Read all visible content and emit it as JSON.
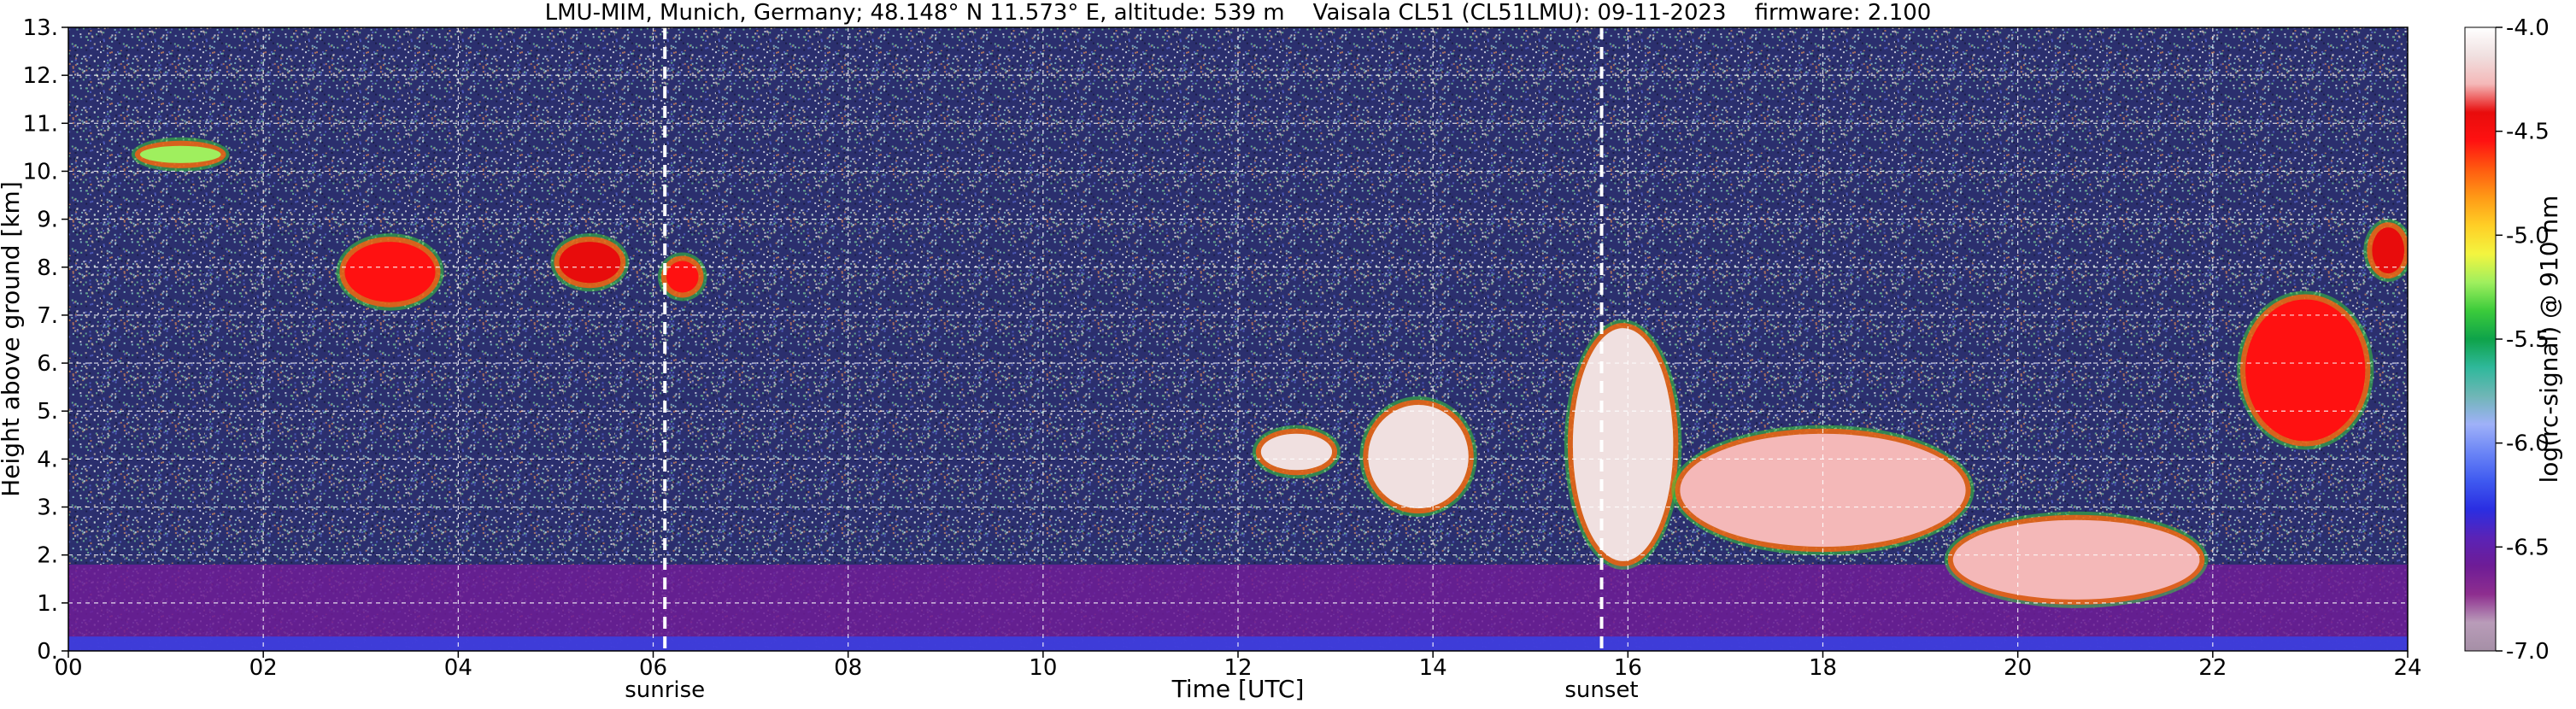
{
  "chart_data": {
    "type": "heatmap",
    "title": "LMU-MIM, Munich, Germany; 48.148° N 11.573° E, altitude: 539 m    Vaisala CL51 (CL51LMU): 09-11-2023    firmware: 2.100",
    "xlabel": "Time [UTC]",
    "ylabel": "Height above ground [km]",
    "xlim": [
      0,
      24
    ],
    "ylim": [
      0,
      13
    ],
    "x_ticks": [
      "00",
      "02",
      "04",
      "06",
      "08",
      "10",
      "12",
      "14",
      "16",
      "18",
      "20",
      "22",
      "24"
    ],
    "y_ticks": [
      "0.",
      "1.",
      "2.",
      "3.",
      "4.",
      "5.",
      "6.",
      "7.",
      "8.",
      "9.",
      "10.",
      "11.",
      "12.",
      "13."
    ],
    "grid": true,
    "colorbar": {
      "label": "log(rc-signal) @ 910 nm",
      "range": [
        -7.0,
        -4.0
      ],
      "ticks": [
        "-7.0",
        "-6.5",
        "-6.0",
        "-5.5",
        "-5.0",
        "-4.5",
        "-4.0"
      ],
      "colors": [
        "#a58fa6",
        "#b99cb9",
        "#8e2e8f",
        "#6e1c96",
        "#5a23b6",
        "#2a2ee2",
        "#3f5af0",
        "#6b85f6",
        "#9fb1f8",
        "#6fb6b6",
        "#2fb89b",
        "#0ea34a",
        "#3bcb3b",
        "#9fef5e",
        "#f3f540",
        "#ffcf26",
        "#ff9a16",
        "#ff5a10",
        "#ff1111",
        "#e80c0c",
        "#f4b8b8",
        "#f0e0e0",
        "#ffffff"
      ]
    },
    "markers": [
      {
        "label": "sunrise",
        "x": 6.12
      },
      {
        "label": "sunset",
        "x": 15.73
      }
    ],
    "series": [
      {
        "name": "",
        "type": "layer",
        "x_start": 0.0,
        "x_end": 24.0,
        "y_bottom": 0.0,
        "y_top": 1.8,
        "level": -6.6
      },
      {
        "name": "",
        "type": "cloud",
        "x_start": 0.7,
        "x_end": 1.6,
        "y_bottom": 10.1,
        "y_top": 10.6,
        "level": -5.2
      },
      {
        "name": "",
        "type": "cloud",
        "x_start": 2.8,
        "x_end": 3.8,
        "y_bottom": 7.2,
        "y_top": 8.6,
        "level": -4.6
      },
      {
        "name": "",
        "type": "cloud",
        "x_start": 5.0,
        "x_end": 5.7,
        "y_bottom": 7.6,
        "y_top": 8.6,
        "level": -4.4
      },
      {
        "name": "",
        "type": "cloud",
        "x_start": 6.1,
        "x_end": 6.5,
        "y_bottom": 7.4,
        "y_top": 8.2,
        "level": -4.5
      },
      {
        "name": "",
        "type": "cloud",
        "x_start": 12.2,
        "x_end": 13.0,
        "y_bottom": 3.7,
        "y_top": 4.6,
        "level": -4.2
      },
      {
        "name": "",
        "type": "cloud",
        "x_start": 13.3,
        "x_end": 14.4,
        "y_bottom": 2.9,
        "y_top": 5.2,
        "level": -4.1
      },
      {
        "name": "",
        "type": "cloud",
        "x_start": 15.4,
        "x_end": 16.5,
        "y_bottom": 1.8,
        "y_top": 6.8,
        "level": -4.1
      },
      {
        "name": "",
        "type": "cloud",
        "x_start": 16.5,
        "x_end": 19.5,
        "y_bottom": 2.1,
        "y_top": 4.6,
        "level": -4.3
      },
      {
        "name": "",
        "type": "cloud",
        "x_start": 19.3,
        "x_end": 21.9,
        "y_bottom": 1.0,
        "y_top": 2.8,
        "level": -4.3
      },
      {
        "name": "",
        "type": "cloud",
        "x_start": 22.3,
        "x_end": 23.6,
        "y_bottom": 4.3,
        "y_top": 7.4,
        "level": -4.5
      },
      {
        "name": "",
        "type": "cloud",
        "x_start": 23.6,
        "x_end": 24.0,
        "y_bottom": 7.8,
        "y_top": 8.9,
        "level": -4.4
      }
    ]
  }
}
